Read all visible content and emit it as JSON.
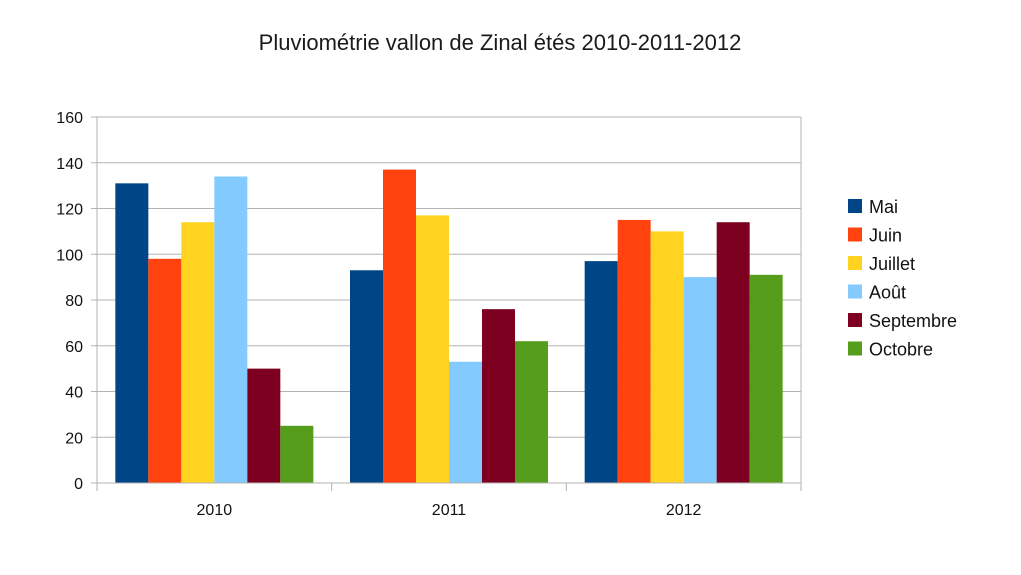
{
  "chart_data": {
    "type": "bar",
    "title": "Pluviométrie vallon de Zinal étés 2010-2011-2012",
    "xlabel": "",
    "ylabel": "",
    "categories": [
      "2010",
      "2011",
      "2012"
    ],
    "ylim": [
      0,
      160
    ],
    "yticks": [
      0,
      20,
      40,
      60,
      80,
      100,
      120,
      140,
      160
    ],
    "grid": true,
    "legend_position": "right",
    "series": [
      {
        "name": "Mai",
        "color": "#004586",
        "values": [
          131,
          93,
          97
        ]
      },
      {
        "name": "Juin",
        "color": "#ff420e",
        "values": [
          98,
          137,
          115
        ]
      },
      {
        "name": "Juillet",
        "color": "#ffd320",
        "values": [
          114,
          117,
          110
        ]
      },
      {
        "name": "Août",
        "color": "#83caff",
        "values": [
          134,
          53,
          90
        ]
      },
      {
        "name": "Septembre",
        "color": "#7e0021",
        "values": [
          50,
          76,
          114
        ]
      },
      {
        "name": "Octobre",
        "color": "#579d1c",
        "values": [
          25,
          62,
          91
        ]
      }
    ]
  }
}
